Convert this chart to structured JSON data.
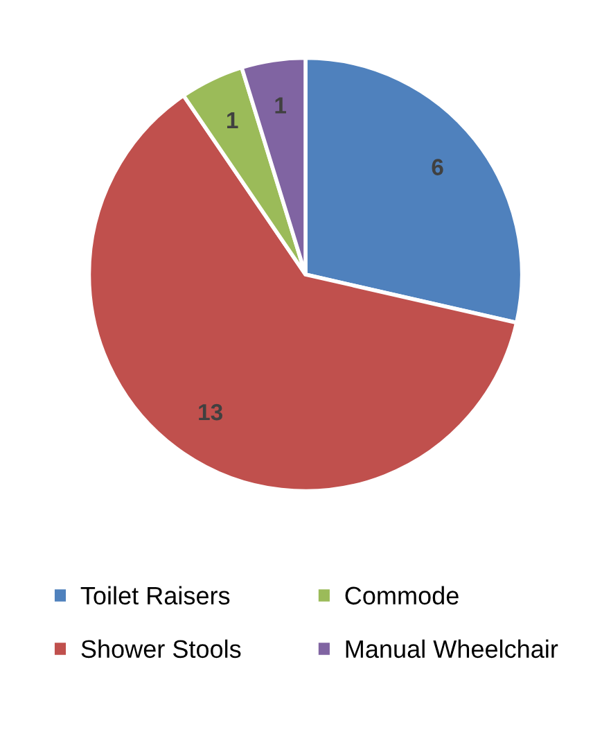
{
  "chart_data": {
    "type": "pie",
    "categories": [
      "Toilet Raisers",
      "Shower Stools",
      "Commode",
      "Manual Wheelchair"
    ],
    "values": [
      6,
      13,
      1,
      1
    ],
    "colors": [
      "#4f81bd",
      "#c0504d",
      "#9bbb59",
      "#8064a2"
    ],
    "data_labels": true,
    "legend": "bottom"
  }
}
